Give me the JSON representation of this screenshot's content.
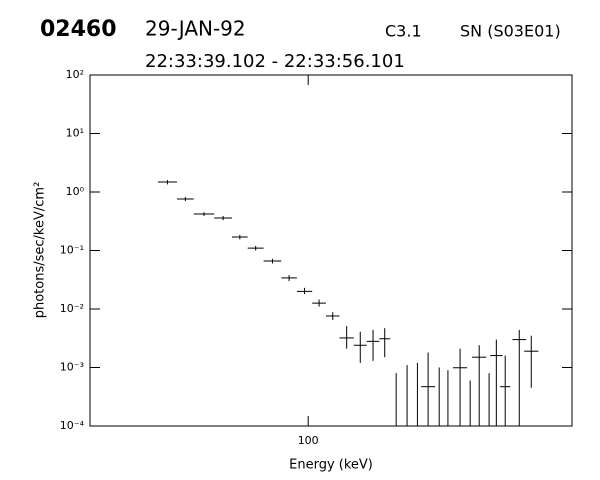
{
  "header": {
    "id": "02460",
    "date": "29-JAN-92",
    "channel": "C3.1",
    "source": "SN (S03E01)",
    "time_range": "22:33:39.102 - 22:33:56.101"
  },
  "chart_data": {
    "type": "errorbar",
    "xlabel": "Energy (keV)",
    "ylabel": "photons/sec/keV/cm²",
    "xscale": "log",
    "yscale": "log",
    "color": "#000000",
    "xlim": [
      20,
      700
    ],
    "ylim": [
      0.0001,
      100
    ],
    "xticks": [
      100
    ],
    "yticks": [
      {
        "value": 0.0001,
        "label": "10⁻⁴"
      },
      {
        "value": 0.001,
        "label": "10⁻³"
      },
      {
        "value": 0.01,
        "label": "10⁻²"
      },
      {
        "value": 0.1,
        "label": "10⁻¹"
      },
      {
        "value": 1,
        "label": "10⁰"
      },
      {
        "value": 10,
        "label": "10¹"
      },
      {
        "value": 100,
        "label": "10²"
      }
    ],
    "x_low": [
      33,
      38,
      43,
      50,
      57,
      64,
      72,
      82,
      92,
      103,
      114,
      126,
      140,
      154,
      169,
      184,
      200,
      215,
      230,
      253,
      270,
      291,
      318,
      335,
      366,
      383,
      412,
      451,
      492
    ],
    "x_high": [
      38,
      43,
      50,
      57,
      64,
      72,
      82,
      92,
      103,
      114,
      126,
      140,
      154,
      169,
      183,
      199,
      215,
      233,
      255,
      273,
      291,
      323,
      343,
      372,
      394,
      419,
      444,
      499,
      546
    ],
    "values": [
      1.48,
      0.76,
      0.42,
      0.36,
      0.17,
      0.11,
      0.066,
      0.034,
      0.02,
      0.0126,
      0.0076,
      0.0032,
      0.0024,
      0.0028,
      0.0031,
      null,
      null,
      null,
      0.00047,
      null,
      null,
      0.00099,
      null,
      0.0015,
      null,
      0.0016,
      0.00047,
      0.003,
      0.0019
    ],
    "y_low": [
      1.35,
      0.7,
      0.39,
      0.33,
      0.155,
      0.1,
      0.06,
      0.03,
      0.018,
      0.011,
      0.0065,
      0.0021,
      0.0012,
      0.0013,
      0.0015,
      null,
      null,
      null,
      null,
      null,
      null,
      null,
      null,
      null,
      null,
      null,
      null,
      null,
      0.00045
    ],
    "y_high": [
      1.6,
      0.82,
      0.45,
      0.39,
      0.185,
      0.12,
      0.072,
      0.038,
      0.023,
      0.0145,
      0.0088,
      0.0051,
      0.0041,
      0.0044,
      0.0047,
      0.0008,
      0.0011,
      0.0012,
      0.0018,
      0.001,
      0.0009,
      0.0021,
      0.0006,
      0.0024,
      0.0008,
      0.003,
      0.0016,
      0.0044,
      0.0035
    ]
  }
}
